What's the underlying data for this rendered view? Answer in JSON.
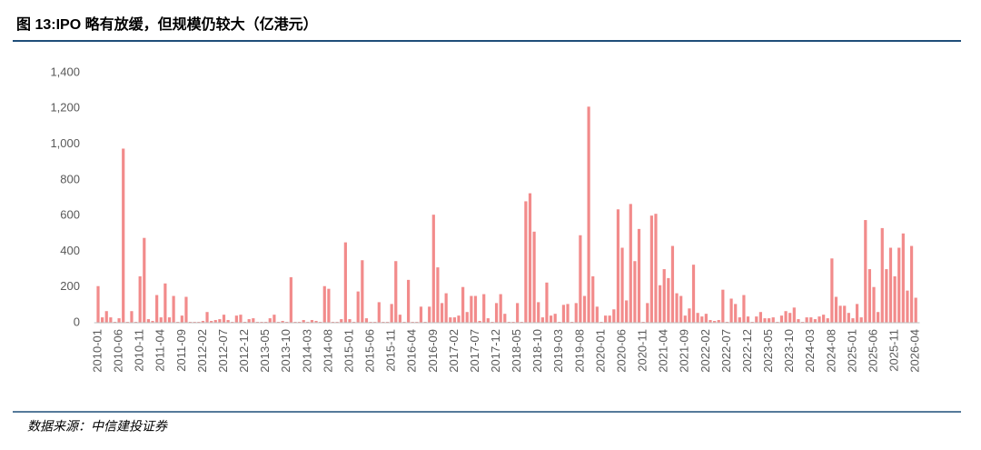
{
  "chart_data": {
    "type": "bar",
    "title": "图 13:IPO 略有放缓，但规模仍较大（亿港元）",
    "source": "数据来源：中信建投证券",
    "categories": [
      "2010-01",
      null,
      null,
      null,
      null,
      "2010-06",
      null,
      null,
      null,
      null,
      "2010-11",
      null,
      null,
      null,
      null,
      "2011-04",
      null,
      null,
      null,
      null,
      "2011-09",
      null,
      null,
      null,
      null,
      "2012-02",
      null,
      null,
      null,
      null,
      "2012-07",
      null,
      null,
      null,
      null,
      "2012-12",
      null,
      null,
      null,
      null,
      "2013-05",
      null,
      null,
      null,
      null,
      "2013-10",
      null,
      null,
      null,
      null,
      "2014-03",
      null,
      null,
      null,
      null,
      "2014-08",
      null,
      null,
      null,
      null,
      "2015-01",
      null,
      null,
      null,
      null,
      "2015-06",
      null,
      null,
      null,
      null,
      "2015-11",
      null,
      null,
      null,
      null,
      "2016-04",
      null,
      null,
      null,
      null,
      "2016-09",
      null,
      null,
      null,
      null,
      "2017-02",
      null,
      null,
      null,
      null,
      "2017-07",
      null,
      null,
      null,
      null,
      "2017-12",
      null,
      null,
      null,
      null,
      "2018-05",
      null,
      null,
      null,
      null,
      "2018-10",
      null,
      null,
      null,
      null,
      "2019-03",
      null,
      null,
      null,
      null,
      "2019-08",
      null,
      null,
      null,
      null,
      "2020-01",
      null,
      null,
      null,
      null,
      "2020-06",
      null,
      null,
      null,
      null,
      "2020-11",
      null,
      null,
      null,
      null,
      "2021-04",
      null,
      null,
      null,
      null,
      "2021-09",
      null,
      null,
      null,
      null,
      "2022-02",
      null,
      null,
      null,
      null,
      "2022-07",
      null,
      null,
      null,
      null,
      "2022-12",
      null,
      null,
      null,
      null,
      "2023-05",
      null,
      null,
      null,
      null,
      "2023-10",
      null,
      null,
      null,
      null,
      "2024-03",
      null,
      null,
      null,
      null,
      "2024-08",
      null,
      null,
      null,
      null,
      "2025-01",
      null,
      null,
      null,
      null,
      "2025-06",
      null,
      null,
      null,
      null,
      "2025-11",
      null,
      null,
      null,
      null,
      "2026-04"
    ],
    "values": [
      205,
      30,
      65,
      30,
      5,
      25,
      975,
      5,
      65,
      5,
      260,
      475,
      20,
      10,
      155,
      30,
      220,
      30,
      150,
      5,
      40,
      145,
      5,
      5,
      5,
      10,
      60,
      10,
      15,
      20,
      45,
      15,
      5,
      40,
      45,
      5,
      20,
      25,
      5,
      5,
      5,
      25,
      45,
      5,
      10,
      5,
      255,
      5,
      5,
      15,
      5,
      15,
      10,
      5,
      205,
      190,
      5,
      5,
      20,
      450,
      20,
      5,
      175,
      350,
      25,
      5,
      5,
      115,
      5,
      5,
      105,
      345,
      45,
      5,
      240,
      5,
      5,
      90,
      5,
      90,
      605,
      310,
      110,
      165,
      30,
      30,
      40,
      200,
      60,
      150,
      150,
      10,
      160,
      25,
      5,
      110,
      160,
      50,
      5,
      5,
      110,
      5,
      680,
      725,
      510,
      115,
      30,
      225,
      40,
      50,
      5,
      100,
      105,
      5,
      110,
      490,
      150,
      1210,
      260,
      90,
      5,
      40,
      40,
      75,
      635,
      420,
      125,
      665,
      345,
      525,
      5,
      110,
      600,
      610,
      210,
      300,
      250,
      430,
      165,
      150,
      40,
      80,
      325,
      55,
      35,
      50,
      15,
      10,
      15,
      185,
      5,
      135,
      105,
      30,
      155,
      35,
      5,
      35,
      60,
      25,
      25,
      30,
      5,
      40,
      65,
      55,
      85,
      20,
      5,
      30,
      30,
      20,
      35,
      45,
      25,
      360,
      145,
      95,
      95,
      55,
      25,
      105,
      30,
      575,
      300,
      200,
      60,
      530,
      300,
      420,
      260,
      420,
      500,
      180,
      430,
      140
    ],
    "color": "#f28b8b",
    "ylim": [
      0,
      1400
    ],
    "yticks": [
      0,
      200,
      400,
      600,
      800,
      {
        "value": 1000,
        "label": "1,000"
      },
      {
        "value": 1200,
        "label": "1,200"
      },
      {
        "value": 1400,
        "label": "1,400"
      }
    ],
    "grid": false
  }
}
